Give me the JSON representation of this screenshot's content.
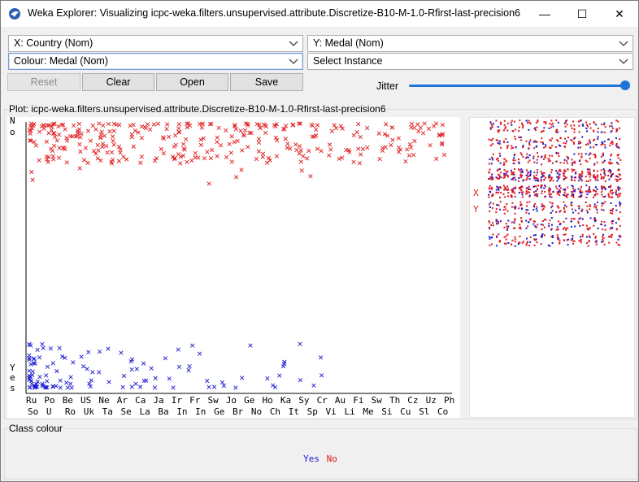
{
  "window": {
    "title": "Weka Explorer: Visualizing icpc-weka.filters.unsupervised.attribute.Discretize-B10-M-1.0-Rfirst-last-precision6",
    "minimize_glyph": "—",
    "maximize_glyph": "☐",
    "close_glyph": "✕"
  },
  "controls": {
    "x_select": "X: Country (Nom)",
    "y_select": "Y: Medal (Nom)",
    "colour_select": "Colour: Medal (Nom)",
    "instance_select": "Select Instance",
    "reset_label": "Reset",
    "clear_label": "Clear",
    "open_label": "Open",
    "save_label": "Save",
    "jitter_label": "Jitter",
    "jitter_value": 1.0
  },
  "plot": {
    "title": "Plot: icpc-weka.filters.unsupervised.attribute.Discretize-B10-M-1.0-Rfirst-last-precision6"
  },
  "chart_data": {
    "type": "scatter",
    "x_attribute": "Country",
    "y_attribute": "Medal",
    "y_categories": [
      "No",
      "Yes"
    ],
    "y_tick_labels": [
      "N",
      "o",
      "Y",
      "e",
      "s"
    ],
    "x_top_labels": [
      "Ru",
      "Po",
      "Be",
      "US",
      "Ne",
      "Ar",
      "Ca",
      "Ja",
      "Ir",
      "Fr",
      "Sw",
      "Jo",
      "Ge",
      "Ho",
      "Ka",
      "Sy",
      "Cr",
      "Au",
      "Fi",
      "Sw",
      "Th",
      "Cz",
      "Uz",
      "Ph"
    ],
    "x_bottom_labels": [
      "So",
      "U",
      "Ro",
      "Uk",
      "Ta",
      "Se",
      "La",
      "Ba",
      "In",
      "In",
      "Ge",
      "Br",
      "No",
      "Ch",
      "It",
      "Sp",
      "Vi",
      "Li",
      "Me",
      "Si",
      "Cu",
      "Sl",
      "Co"
    ],
    "mark_glyph": "x",
    "colors": {
      "No": "#e0191b",
      "Yes": "#1a1ad2"
    },
    "no_x_range": [
      0,
      1
    ],
    "yes_x_range": [
      0,
      0.72
    ]
  },
  "matrix": {
    "x_marker": "X",
    "y_marker": "Y"
  },
  "class_colour": {
    "title": "Class colour",
    "legend": [
      {
        "label": "Yes",
        "color": "#1a1ad2"
      },
      {
        "label": "No",
        "color": "#e0191b"
      }
    ]
  }
}
